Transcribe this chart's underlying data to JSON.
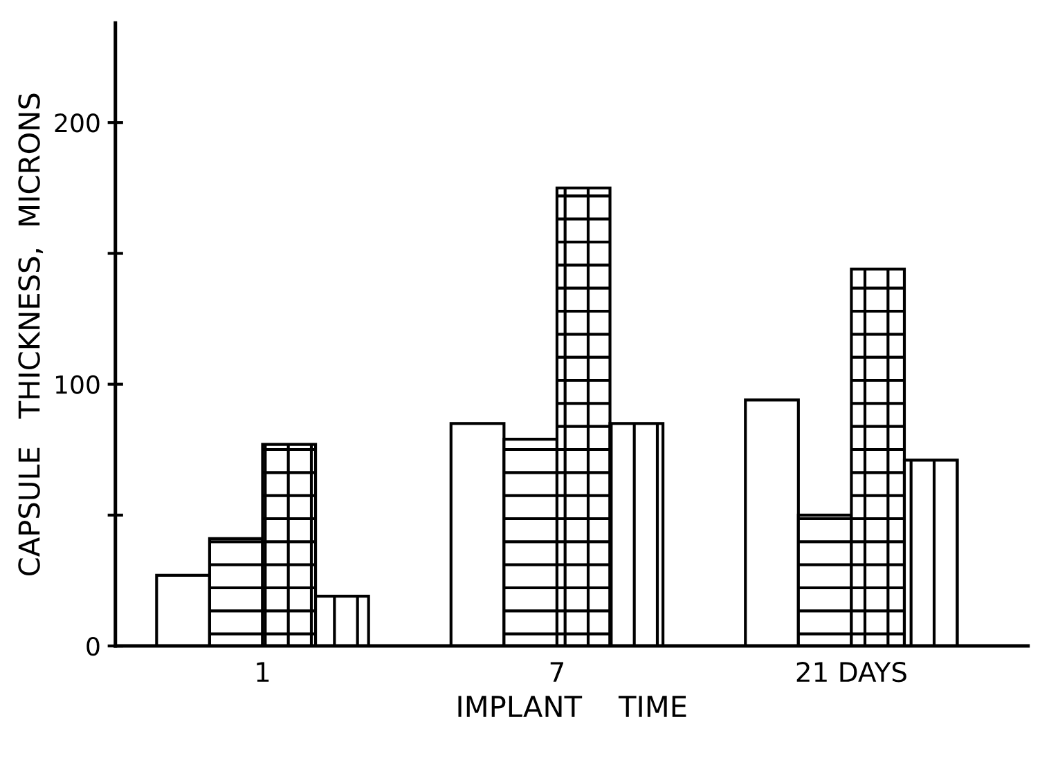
{
  "chart_data": {
    "type": "bar",
    "xlabel": "IMPLANT    TIME",
    "ylabel": "CAPSULE   THICKNESS,  MICRONS",
    "categories": [
      "1",
      "7",
      "21 DAYS"
    ],
    "series": [
      {
        "color": "#ffffff",
        "values": [
          27,
          85,
          94
        ]
      },
      {
        "color": "#000000",
        "values": [
          41,
          79,
          50
        ]
      },
      {
        "color": "#000000",
        "values": [
          77,
          175,
          144
        ]
      },
      {
        "color": "#000000",
        "values": [
          19,
          85,
          71
        ]
      }
    ],
    "ylim": [
      0,
      238
    ],
    "yticks": [
      0,
      {
        "value": 50,
        "label": null
      },
      100,
      {
        "value": 150,
        "label": null
      },
      200
    ],
    "grid": false,
    "legend": false
  }
}
